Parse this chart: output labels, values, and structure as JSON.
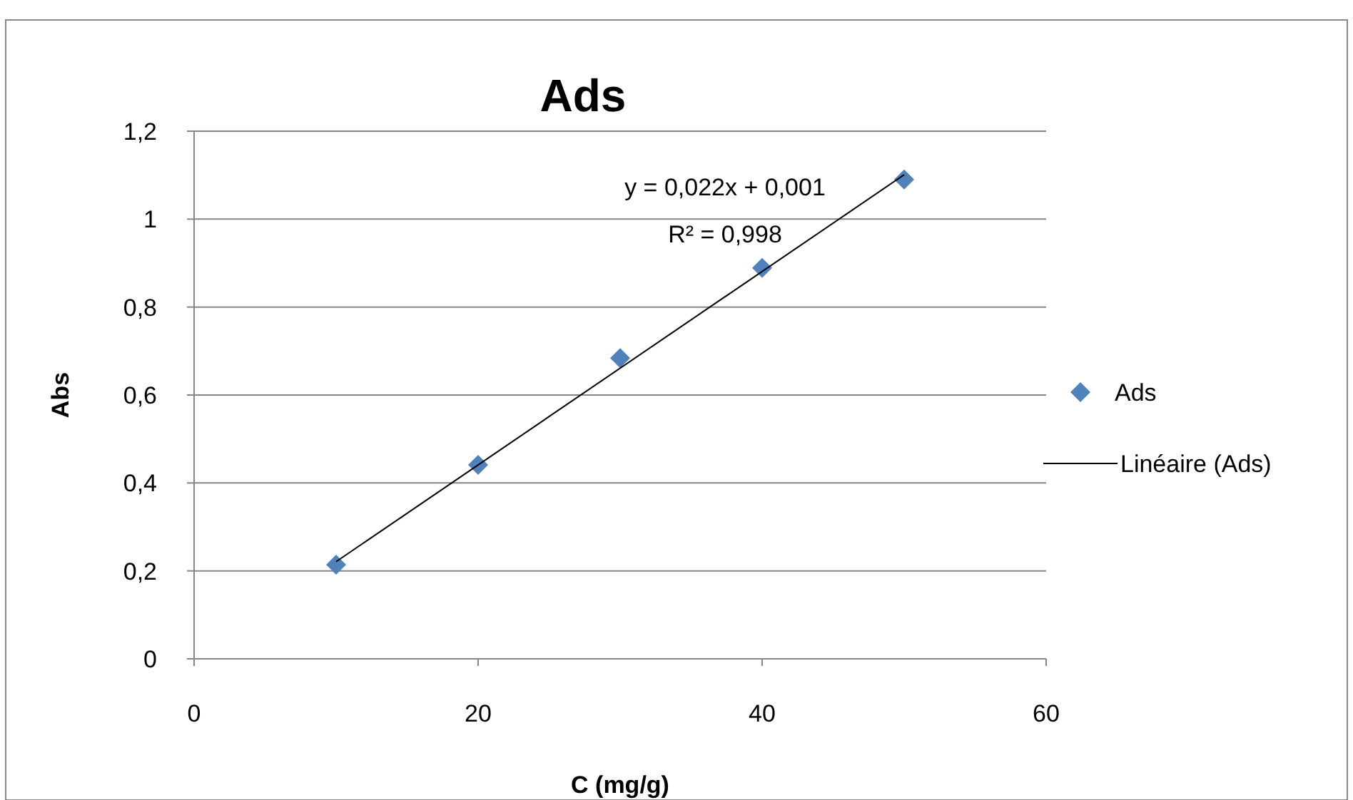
{
  "chart_data": {
    "type": "scatter",
    "title": "Ads",
    "xlabel": "C (mg/g)",
    "ylabel": "Abs",
    "xlim": [
      0,
      60
    ],
    "xticks": [
      0,
      20,
      40,
      60
    ],
    "ylim": [
      0,
      1.2
    ],
    "yticks": [
      0,
      {
        "value": 0.2,
        "label": "0,2"
      },
      {
        "value": 0.4,
        "label": "0,4"
      },
      {
        "value": 0.6,
        "label": "0,6"
      },
      {
        "value": 0.8,
        "label": "0,8"
      },
      1,
      {
        "value": 1.2,
        "label": "1,2"
      }
    ],
    "grid": "y",
    "legend": "right",
    "series": [
      {
        "name": "Ads",
        "color": "#4f81bd",
        "marker": "diamond",
        "x": [
          10,
          20,
          30,
          40,
          50
        ],
        "values": [
          0.214,
          0.441,
          0.684,
          0.889,
          1.09
        ]
      },
      {
        "type": "line",
        "name": "Linéaire (Ads)",
        "color": "#000000",
        "marker": "none",
        "x": [
          10,
          50
        ],
        "values": [
          0.221,
          1.101
        ]
      }
    ],
    "annotations": [
      "y = 0,022x + 0,001",
      "R² = 0,998"
    ]
  }
}
